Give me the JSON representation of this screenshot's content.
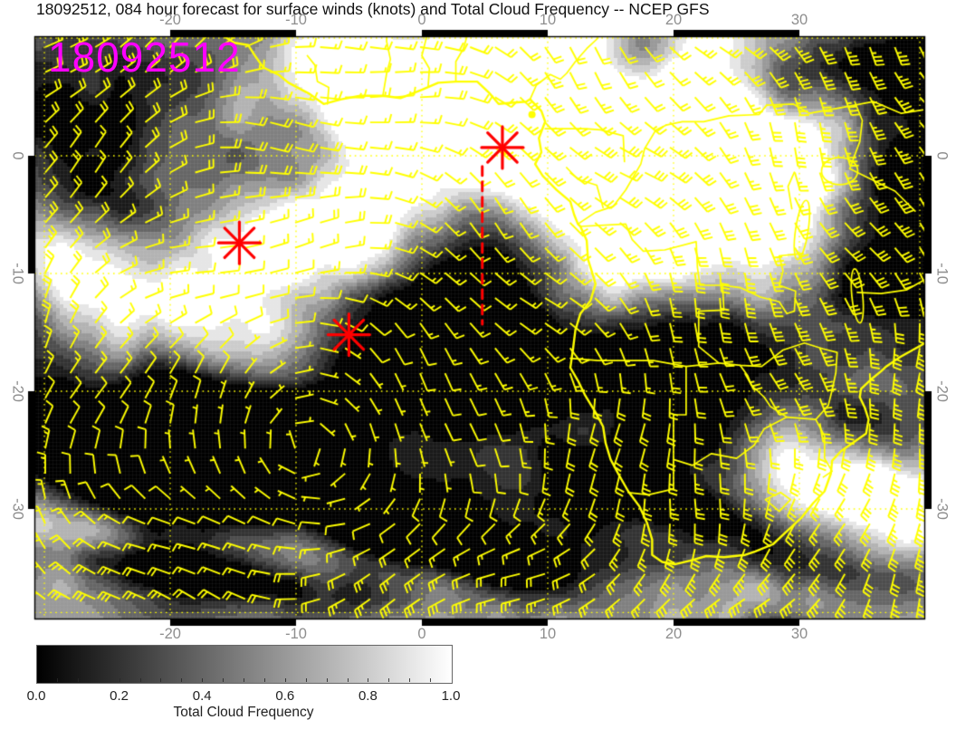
{
  "title": "18092512, 084 hour forecast for surface winds (knots) and Total Cloud Frequency -- NCEP GFS",
  "forecast": {
    "run": "18092512",
    "forecast_hour": "084",
    "model": "NCEP GFS",
    "fields": [
      "surface winds (knots)",
      "Total Cloud Frequency"
    ]
  },
  "map": {
    "run_label": "18092512",
    "axes": {
      "lon_tick_values": [
        -20,
        -10,
        0,
        10,
        20,
        30
      ],
      "lon_tick_labels": [
        "-20",
        "-10",
        "0",
        "10",
        "20",
        "30"
      ],
      "lat_tick_values": [
        0,
        -10,
        -20,
        -30
      ],
      "lat_tick_labels": [
        "0",
        "-10",
        "-20",
        "-30"
      ],
      "lon_range_deg": [
        -31,
        40
      ],
      "lat_range_deg": [
        -39.5,
        10.2
      ]
    },
    "gridlines": {
      "lon_deg": [
        -30,
        -20,
        -10,
        0,
        10,
        20,
        30,
        40
      ],
      "lat_deg": [
        10,
        0,
        -10,
        -20,
        -30,
        -38.8
      ],
      "style": "dotted",
      "color": "#ffff00"
    },
    "markers": {
      "asterisks_lonlat": [
        [
          6.4,
          0.7
        ],
        [
          -14.5,
          -7.4
        ],
        [
          -5.8,
          -15.2
        ]
      ],
      "dashed_track": {
        "lon": 4.8,
        "lat_start": -0.9,
        "lat_end": -14.3
      },
      "color": "#ff0000"
    },
    "wind_barbs": {
      "color": "#ffff00",
      "units": "knots"
    },
    "coastlines_color": "#ffff00",
    "cloud_shading": "grayscale, 0 = black to 1 = white"
  },
  "colorbar": {
    "title": "Total Cloud Frequency",
    "tick_labels": [
      "0.0",
      "0.2",
      "0.4",
      "0.6",
      "0.8",
      "1.0"
    ],
    "min": 0.0,
    "max": 1.0,
    "start_color": "#000000",
    "end_color": "#ffffff"
  },
  "colors": {
    "background": "#ffffff",
    "title_text": "#111111",
    "axis_label": "#8e8e8e",
    "run_label": "#ff00ff",
    "wind_barbs": "#ffff00",
    "markers": "#ff0000"
  }
}
